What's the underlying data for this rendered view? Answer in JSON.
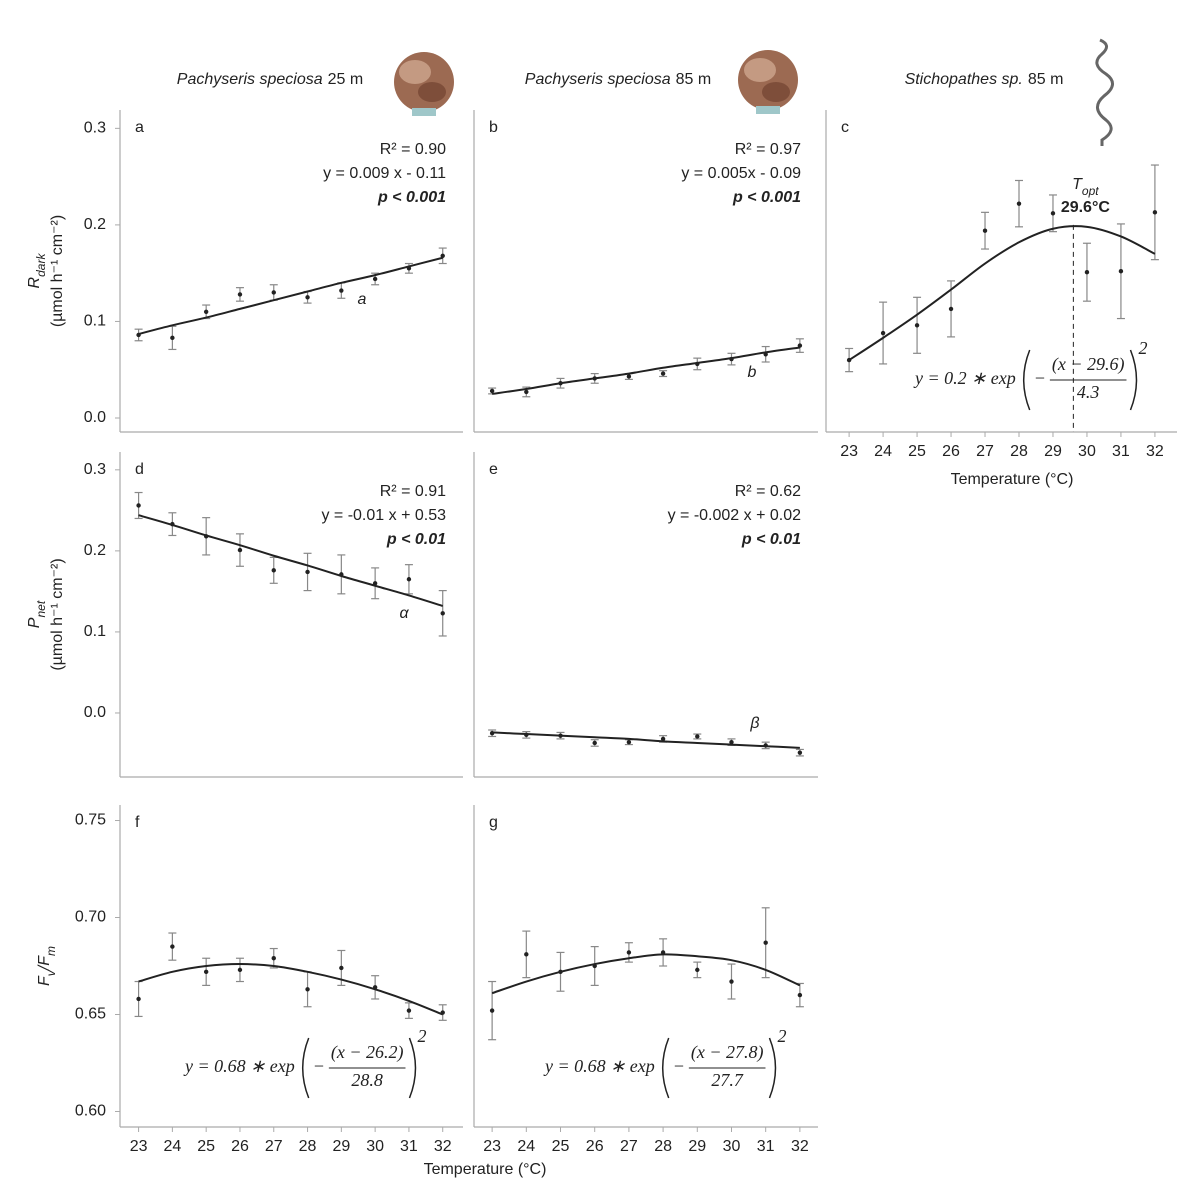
{
  "chart_data": [
    {
      "type": "scatter",
      "title": "Pachyseris speciosa",
      "title_suffix": "25 m",
      "letter": "a",
      "r2": "R² = 0.90",
      "equation": "y = 0.009 x - 0.11",
      "p": "p < 0.001",
      "group_label": "a",
      "ylabel_parts": [
        {
          "text": "R"
        },
        {
          "text": "dark",
          "sub": true
        }
      ],
      "ylabel_unit": "(µmol h⁻¹ cm⁻²)",
      "x": [
        23,
        24,
        25,
        26,
        27,
        28,
        29,
        30,
        31,
        32
      ],
      "values": [
        0.086,
        0.083,
        0.11,
        0.128,
        0.13,
        0.125,
        0.132,
        0.144,
        0.155,
        0.168
      ],
      "errors": [
        0.006,
        0.012,
        0.007,
        0.007,
        0.008,
        0.006,
        0.008,
        0.006,
        0.005,
        0.008
      ],
      "fit": [
        0.087,
        0.096,
        0.104,
        0.113,
        0.122,
        0.131,
        0.14,
        0.148,
        0.157,
        0.166
      ],
      "color": "#222222",
      "error_color": "#888888",
      "xlim": [
        22.45,
        32.6
      ],
      "ylim": [
        -0.0145,
        0.319
      ],
      "yticks": [
        {
          "value": 0,
          "label": "0.0"
        },
        0.1,
        0.2,
        0.3
      ]
    },
    {
      "type": "scatter",
      "title": "Pachyseris speciosa",
      "title_suffix": "85 m",
      "letter": "b",
      "r2": "R² = 0.97",
      "equation": "y = 0.005x - 0.09",
      "p": "p < 0.001",
      "group_label": "b",
      "x": [
        23,
        24,
        25,
        26,
        27,
        28,
        29,
        30,
        31,
        32
      ],
      "values": [
        0.028,
        0.027,
        0.036,
        0.041,
        0.043,
        0.046,
        0.056,
        0.061,
        0.066,
        0.075
      ],
      "errors": [
        0.003,
        0.005,
        0.005,
        0.005,
        0.003,
        0.003,
        0.006,
        0.006,
        0.008,
        0.007
      ],
      "fit": [
        0.025,
        0.03,
        0.036,
        0.041,
        0.046,
        0.052,
        0.057,
        0.062,
        0.068,
        0.073
      ],
      "color": "#222222",
      "error_color": "#888888",
      "xlim": [
        22.47,
        32.53
      ],
      "ylim": [
        -0.0145,
        0.319
      ]
    },
    {
      "type": "scatter",
      "title": "Stichopathes sp.",
      "title_suffix": "85 m",
      "letter": "c",
      "x": [
        23,
        24,
        25,
        26,
        27,
        28,
        29,
        30,
        31,
        32
      ],
      "values": [
        0.06,
        0.088,
        0.096,
        0.113,
        0.194,
        0.222,
        0.212,
        0.151,
        0.152,
        0.213
      ],
      "errors": [
        0.012,
        0.032,
        0.029,
        0.029,
        0.019,
        0.024,
        0.019,
        0.03,
        0.049,
        0.049
      ],
      "fit": [
        0.06,
        0.083,
        0.107,
        0.133,
        0.16,
        0.182,
        0.196,
        0.198,
        0.188,
        0.17
      ],
      "color": "#222222",
      "error_color": "#888888",
      "topt": 29.6,
      "topt_label": "29.6°C",
      "topt_name": [
        {
          "text": "T"
        },
        {
          "text": "opt",
          "sub": true
        }
      ],
      "fit_equation": {
        "lhs": "y = 0.2 ∗ exp",
        "minus": "−",
        "num": "(x − 29.6)",
        "den": "4.3",
        "exp": "2"
      },
      "xlabel": "Temperature (°C)",
      "xlim": [
        22.32,
        32.65
      ],
      "ylim": [
        -0.0145,
        0.319
      ],
      "xticks": [
        23,
        24,
        25,
        26,
        27,
        28,
        29,
        30,
        31,
        32
      ]
    },
    {
      "type": "scatter",
      "letter": "d",
      "r2": "R² = 0.91",
      "equation": "y = -0.01 x + 0.53",
      "p": "p < 0.01",
      "group_label": "α",
      "ylabel_parts": [
        {
          "text": "P"
        },
        {
          "text": "net",
          "sub": true
        }
      ],
      "ylabel_unit": "(µmol h⁻¹ cm⁻²)",
      "x": [
        23,
        24,
        25,
        26,
        27,
        28,
        29,
        30,
        31,
        32
      ],
      "values": [
        0.256,
        0.233,
        0.218,
        0.201,
        0.176,
        0.174,
        0.171,
        0.16,
        0.165,
        0.123
      ],
      "errors": [
        0.016,
        0.014,
        0.023,
        0.02,
        0.016,
        0.023,
        0.024,
        0.019,
        0.018,
        0.028
      ],
      "fit": [
        0.244,
        0.232,
        0.219,
        0.207,
        0.194,
        0.182,
        0.169,
        0.157,
        0.145,
        0.132
      ],
      "color": "#222222",
      "error_color": "#888888",
      "xlim": [
        22.45,
        32.6
      ],
      "ylim": [
        -0.079,
        0.322
      ],
      "yticks": [
        {
          "value": 0,
          "label": "0.0"
        },
        0.1,
        0.2,
        0.3
      ]
    },
    {
      "type": "scatter",
      "letter": "e",
      "r2": "R² = 0.62",
      "equation": "y = -0.002 x + 0.02",
      "p": "p < 0.01",
      "group_label": "β",
      "x": [
        23,
        24,
        25,
        26,
        27,
        28,
        29,
        30,
        31,
        32
      ],
      "values": [
        -0.025,
        -0.027,
        -0.028,
        -0.037,
        -0.036,
        -0.032,
        -0.029,
        -0.036,
        -0.04,
        -0.049
      ],
      "errors": [
        0.004,
        0.004,
        0.004,
        0.004,
        0.003,
        0.004,
        0.003,
        0.004,
        0.004,
        0.004
      ],
      "fit": [
        -0.024,
        -0.026,
        -0.028,
        -0.03,
        -0.032,
        -0.035,
        -0.037,
        -0.039,
        -0.041,
        -0.043
      ],
      "color": "#222222",
      "error_color": "#888888",
      "xlim": [
        22.47,
        32.53
      ],
      "ylim": [
        -0.079,
        0.322
      ]
    },
    {
      "type": "scatter",
      "letter": "f",
      "ylabel_parts": [
        {
          "text": "F"
        },
        {
          "text": "v",
          "sub": true
        },
        {
          "text": "/F"
        },
        {
          "text": "m",
          "sub": true
        }
      ],
      "x": [
        23,
        24,
        25,
        26,
        27,
        28,
        29,
        30,
        31,
        32
      ],
      "values": [
        0.658,
        0.685,
        0.672,
        0.673,
        0.679,
        0.663,
        0.674,
        0.664,
        0.652,
        0.651
      ],
      "errors": [
        0.009,
        0.007,
        0.007,
        0.006,
        0.005,
        0.009,
        0.009,
        0.006,
        0.004,
        0.004
      ],
      "fit": [
        0.667,
        0.672,
        0.675,
        0.676,
        0.675,
        0.672,
        0.668,
        0.663,
        0.657,
        0.65
      ],
      "color": "#222222",
      "error_color": "#888888",
      "fit_equation": {
        "lhs": "y = 0.68 ∗ exp",
        "minus": "−",
        "num": "(x − 26.2)",
        "den": "28.8",
        "exp": "2"
      },
      "xlabel": "Temperature (°C)",
      "xlim": [
        22.45,
        32.6
      ],
      "ylim": [
        0.592,
        0.758
      ],
      "xticks": [
        23,
        24,
        25,
        26,
        27,
        28,
        29,
        30,
        31,
        32
      ],
      "yticks": [
        {
          "value": 0.6,
          "label": "0.60"
        },
        0.65,
        {
          "value": 0.7,
          "label": "0.70"
        },
        0.75
      ]
    },
    {
      "type": "scatter",
      "letter": "g",
      "x": [
        23,
        24,
        25,
        26,
        27,
        28,
        29,
        30,
        31,
        32
      ],
      "values": [
        0.652,
        0.681,
        0.672,
        0.675,
        0.682,
        0.682,
        0.673,
        0.667,
        0.687,
        0.66
      ],
      "errors": [
        0.015,
        0.012,
        0.01,
        0.01,
        0.005,
        0.007,
        0.004,
        0.009,
        0.018,
        0.006
      ],
      "fit": [
        0.661,
        0.667,
        0.672,
        0.676,
        0.679,
        0.681,
        0.68,
        0.678,
        0.673,
        0.665
      ],
      "color": "#222222",
      "error_color": "#888888",
      "fit_equation": {
        "lhs": "y = 0.68 ∗ exp",
        "minus": "−",
        "num": "(x − 27.8)",
        "den": "27.7",
        "exp": "2"
      },
      "xlim": [
        22.47,
        32.53
      ],
      "ylim": [
        0.592,
        0.758
      ],
      "xticks": [
        23,
        24,
        25,
        26,
        27,
        28,
        29,
        30,
        31,
        32
      ]
    }
  ]
}
